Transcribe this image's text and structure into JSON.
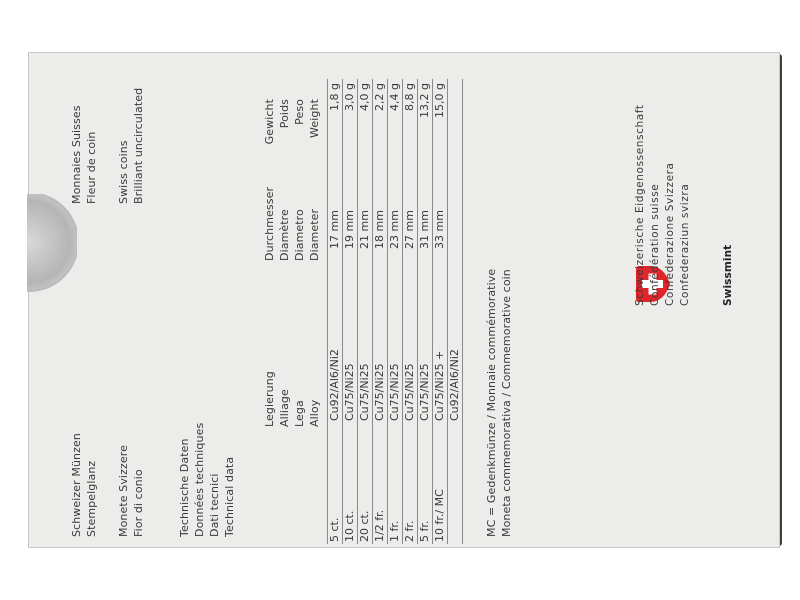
{
  "header_left": {
    "lines_de": [
      "Schweizer Münzen",
      "Stempelglanz"
    ],
    "lines_it": [
      "Monete Svizzere",
      "Fior di conio"
    ]
  },
  "header_right": {
    "lines_fr": [
      "Monnaies Suisses",
      "Fleur de coin"
    ],
    "lines_en": [
      "Swiss coins",
      "Brilliant uncirculated"
    ]
  },
  "technical_title": [
    "Technische Daten",
    "Données techniques",
    "Dati tecnici",
    "Technical data"
  ],
  "table": {
    "headers": {
      "alloy": [
        "Legierung",
        "Alliage",
        "Lega",
        "Alloy"
      ],
      "diameter": [
        "Durchmesser",
        "Diamètre",
        "Diametro",
        "Diameter"
      ],
      "weight": [
        "Gewicht",
        "Poids",
        "Peso",
        "Weight"
      ]
    },
    "rows": [
      {
        "coin": "5 ct.",
        "alloy": "Cu92/Al6/Ni2",
        "diameter": "17 mm",
        "weight": "1,8 g"
      },
      {
        "coin": "10 ct.",
        "alloy": "Cu75/Ni25",
        "diameter": "19 mm",
        "weight": "3,0 g"
      },
      {
        "coin": "20 ct.",
        "alloy": "Cu75/Ni25",
        "diameter": "21 mm",
        "weight": "4,0 g"
      },
      {
        "coin": "1/2 fr.",
        "alloy": "Cu75/Ni25",
        "diameter": "18 mm",
        "weight": "2,2 g"
      },
      {
        "coin": "1 fr.",
        "alloy": "Cu75/Ni25",
        "diameter": "23 mm",
        "weight": "4,4 g"
      },
      {
        "coin": "2 fr.",
        "alloy": "Cu75/Ni25",
        "diameter": "27 mm",
        "weight": "8,8 g"
      },
      {
        "coin": "5 fr.",
        "alloy": "Cu75/Ni25",
        "diameter": "31 mm",
        "weight": "13,2 g"
      },
      {
        "coin": "10 fr./ MC",
        "alloy": "Cu75/Ni25 +",
        "diameter": "33 mm",
        "weight": "15,0 g"
      },
      {
        "coin": "",
        "alloy": "Cu92/Al6/Ni2",
        "diameter": "",
        "weight": ""
      }
    ]
  },
  "footnote": [
    "MC = Gedenkmünze / Monnaie commémorative",
    "Moneta commemorativa / Commemorative coin"
  ],
  "confederation": [
    "Schweizerische Eidgenossenschaft",
    "Confédération suisse",
    "Confederazione Svizzera",
    "Confederaziun svizra"
  ],
  "brand": "Swissmint",
  "colors": {
    "shield_red": "#e0262b",
    "card": "#ececeb"
  }
}
